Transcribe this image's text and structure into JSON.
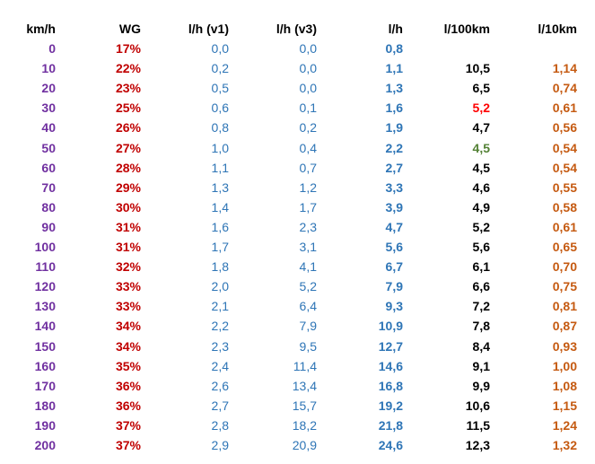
{
  "colors": {
    "purple": "#7030a0",
    "dark_red": "#c00000",
    "blue": "#2e75b6",
    "black": "#000000",
    "red": "#ff0000",
    "green": "#538135",
    "orange": "#c55a11"
  },
  "headers": [
    "km/h",
    "WG",
    "l/h (v1)",
    "l/h (v3)",
    "l/h",
    "l/100km",
    "l/10km"
  ],
  "rows": [
    [
      "0",
      "17%",
      "0,0",
      "0,0",
      "0,8",
      "",
      ""
    ],
    [
      "10",
      "22%",
      "0,2",
      "0,0",
      "1,1",
      "10,5",
      "1,14"
    ],
    [
      "20",
      "23%",
      "0,5",
      "0,0",
      "1,3",
      "6,5",
      "0,74"
    ],
    [
      "30",
      "25%",
      "0,6",
      "0,1",
      "1,6",
      "5,2",
      "0,61"
    ],
    [
      "40",
      "26%",
      "0,8",
      "0,2",
      "1,9",
      "4,7",
      "0,56"
    ],
    [
      "50",
      "27%",
      "1,0",
      "0,4",
      "2,2",
      "4,5",
      "0,54"
    ],
    [
      "60",
      "28%",
      "1,1",
      "0,7",
      "2,7",
      "4,5",
      "0,54"
    ],
    [
      "70",
      "29%",
      "1,3",
      "1,2",
      "3,3",
      "4,6",
      "0,55"
    ],
    [
      "80",
      "30%",
      "1,4",
      "1,7",
      "3,9",
      "4,9",
      "0,58"
    ],
    [
      "90",
      "31%",
      "1,6",
      "2,3",
      "4,7",
      "5,2",
      "0,61"
    ],
    [
      "100",
      "31%",
      "1,7",
      "3,1",
      "5,6",
      "5,6",
      "0,65"
    ],
    [
      "110",
      "32%",
      "1,8",
      "4,1",
      "6,7",
      "6,1",
      "0,70"
    ],
    [
      "120",
      "33%",
      "2,0",
      "5,2",
      "7,9",
      "6,6",
      "0,75"
    ],
    [
      "130",
      "33%",
      "2,1",
      "6,4",
      "9,3",
      "7,2",
      "0,81"
    ],
    [
      "140",
      "34%",
      "2,2",
      "7,9",
      "10,9",
      "7,8",
      "0,87"
    ],
    [
      "150",
      "34%",
      "2,3",
      "9,5",
      "12,7",
      "8,4",
      "0,93"
    ],
    [
      "160",
      "35%",
      "2,4",
      "11,4",
      "14,6",
      "9,1",
      "1,00"
    ],
    [
      "170",
      "36%",
      "2,6",
      "13,4",
      "16,8",
      "9,9",
      "1,08"
    ],
    [
      "180",
      "36%",
      "2,7",
      "15,7",
      "19,2",
      "10,6",
      "1,15"
    ],
    [
      "190",
      "37%",
      "2,8",
      "18,2",
      "21,8",
      "11,5",
      "1,24"
    ],
    [
      "200",
      "37%",
      "2,9",
      "20,9",
      "24,6",
      "12,3",
      "1,32"
    ]
  ],
  "column_colors": [
    "purple",
    "dark_red",
    "blue",
    "blue",
    "blue",
    "black",
    "orange"
  ],
  "column_bold": [
    true,
    true,
    false,
    false,
    true,
    true,
    true
  ],
  "highlights": [
    {
      "row": 3,
      "col": 5,
      "color": "red"
    },
    {
      "row": 5,
      "col": 5,
      "color": "green"
    }
  ]
}
